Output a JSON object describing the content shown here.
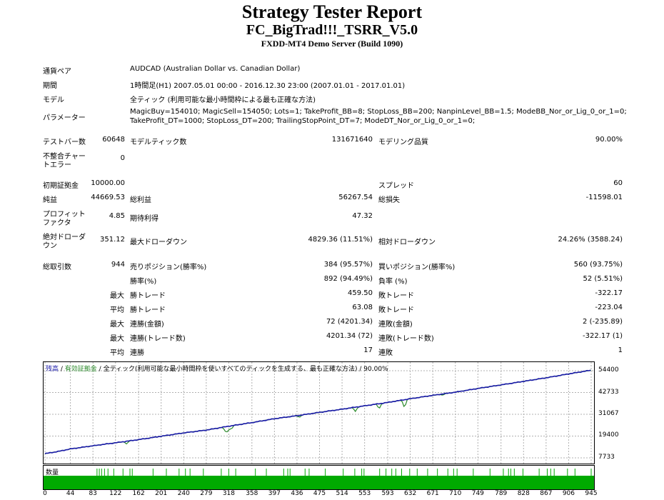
{
  "header": {
    "title": "Strategy Tester Report",
    "ea_name": "FC_BigTrad!!!_TSRR_V5.0",
    "server": "FXDD-MT4 Demo Server (Build 1090)"
  },
  "info": {
    "symbol_label": "通貨ペア",
    "symbol_value": "AUDCAD (Australian Dollar vs. Canadian Dollar)",
    "period_label": "期間",
    "period_value": "1時間足(H1) 2007.05.01 00:00 - 2016.12.30 23:00 (2007.01.01 - 2017.01.01)",
    "model_label": "モデル",
    "model_value": "全ティック (利用可能な最小時間枠による最も正確な方法)",
    "params_label": "パラメーター",
    "params_line1": "MagicBuy=154010; MagicSell=154050; Lots=1; TakeProfit_BB=8; StopLoss_BB=200; NanpinLevel_BB=1.5; ModeBB_Nor_or_Lig_0_or_1=0;",
    "params_line2": "TakeProfit_DT=1000; StopLoss_DT=200; TrailingStopPoint_DT=7; ModeDT_Nor_or_Lig_0_or_1=0;"
  },
  "stats": {
    "bars_label": "テストバー数",
    "bars_value": "60648",
    "ticks_label": "モデルティック数",
    "ticks_value": "131671640",
    "quality_label": "モデリング品質",
    "quality_value": "90.00%",
    "mismatch_label_1": "不整合チャー",
    "mismatch_label_2": "トエラー",
    "mismatch_value": "0",
    "deposit_label": "初期証拠金",
    "deposit_value": "10000.00",
    "spread_label": "スプレッド",
    "spread_value": "60",
    "net_label": "純益",
    "net_value": "44669.53",
    "gross_profit_label": "総利益",
    "gross_profit_value": "56267.54",
    "gross_loss_label": "総損失",
    "gross_loss_value": "-11598.01",
    "pf_label_1": "プロフィット",
    "pf_label_2": "ファクタ",
    "pf_value": "4.85",
    "expected_label": "期待利得",
    "expected_value": "47.32",
    "abs_dd_label_1": "絶対ドローダ",
    "abs_dd_label_2": "ウン",
    "abs_dd_value": "351.12",
    "max_dd_label": "最大ドローダウン",
    "max_dd_value": "4829.36 (11.51%)",
    "rel_dd_label": "相対ドローダウン",
    "rel_dd_value": "24.26% (3588.24)",
    "total_trades_label": "総取引数",
    "total_trades_value": "944",
    "short_label": "売りポジション(勝率%)",
    "short_value": "384 (95.57%)",
    "long_label": "買いポジション(勝率%)",
    "long_value": "560 (93.75%)",
    "win_label": "勝率(%)",
    "win_value": "892 (94.49%)",
    "loss_label": "負率 (%)",
    "loss_value": "52 (5.51%)",
    "max_word": "最大",
    "avg_word": "平均",
    "win_trade_label": "勝トレード",
    "loss_trade_label": "敗トレード",
    "largest_win": "459.50",
    "largest_loss": "-322.17",
    "average_win": "63.08",
    "average_loss": "-223.04",
    "consec_win_amt_label": "連勝(金額)",
    "consec_win_amt_value": "72 (4201.34)",
    "consec_loss_amt_label": "連敗(金額)",
    "consec_loss_amt_value": "2 (-235.89)",
    "consec_win_cnt_label": "連勝(トレード数)",
    "consec_win_cnt_value": "4201.34 (72)",
    "consec_loss_cnt_label": "連敗(トレード数)",
    "consec_loss_cnt_value": "-322.17 (1)",
    "avg_consec_win_label": "連勝",
    "avg_consec_win_value": "17",
    "avg_consec_loss_label": "連敗",
    "avg_consec_loss_value": "1"
  },
  "legend": {
    "balance": "残高",
    "sep1": " / ",
    "equity": "有効証拠金",
    "sep2": " / ",
    "model": "全ティック(利用可能な最小時間枠を使いすべてのティックを生成する、最も正確な方法)",
    "sep3": " / ",
    "quality": "90.00%"
  },
  "volume_label": "数量",
  "colors": {
    "balance": "#1a1aa8",
    "equity": "#2a8a2a",
    "volume": "#00aa00"
  },
  "chart_data": {
    "type": "line",
    "title": "",
    "xlabel": "",
    "ylabel": "",
    "x_ticks": [
      "0",
      "44",
      "83",
      "122",
      "162",
      "201",
      "240",
      "279",
      "318",
      "358",
      "397",
      "436",
      "475",
      "514",
      "553",
      "593",
      "632",
      "671",
      "710",
      "749",
      "789",
      "828",
      "867",
      "906",
      "945"
    ],
    "y_ticks": [
      "54400",
      "42733",
      "31067",
      "19400",
      "7733"
    ],
    "ylim": [
      7733,
      54400
    ],
    "xlim": [
      0,
      945
    ],
    "series": [
      {
        "name": "残高",
        "x": [
          0,
          20,
          44,
          83,
          122,
          162,
          201,
          240,
          279,
          318,
          358,
          397,
          436,
          475,
          514,
          553,
          593,
          632,
          671,
          710,
          749,
          789,
          828,
          867,
          906,
          945
        ],
        "y": [
          10000,
          11000,
          12500,
          14200,
          15800,
          17500,
          19300,
          21100,
          22600,
          24700,
          26600,
          28700,
          30300,
          32100,
          33800,
          35600,
          37400,
          39400,
          41200,
          42900,
          44900,
          46800,
          48700,
          50600,
          52700,
          54670
        ]
      },
      {
        "name": "有効証拠金",
        "dips": [
          [
            141,
            15200
          ],
          [
            312,
            22100
          ],
          [
            316,
            21200
          ],
          [
            322,
            22800
          ],
          [
            440,
            29400
          ],
          [
            537,
            32600
          ],
          [
            578,
            33900
          ],
          [
            622,
            34400
          ],
          [
            688,
            41200
          ]
        ]
      }
    ],
    "volume_ticks": [
      90,
      94,
      98,
      103,
      109,
      119,
      135,
      147,
      151,
      187,
      210,
      232,
      243,
      251,
      274,
      305,
      318,
      330,
      364,
      383,
      413,
      420,
      424,
      450,
      457,
      485,
      516,
      536,
      548,
      552,
      579,
      590,
      600,
      607,
      617,
      631,
      644,
      662,
      679,
      697,
      707,
      713,
      741,
      770,
      793,
      802,
      806,
      812,
      827,
      855,
      869,
      875,
      881,
      904,
      917,
      945
    ]
  }
}
